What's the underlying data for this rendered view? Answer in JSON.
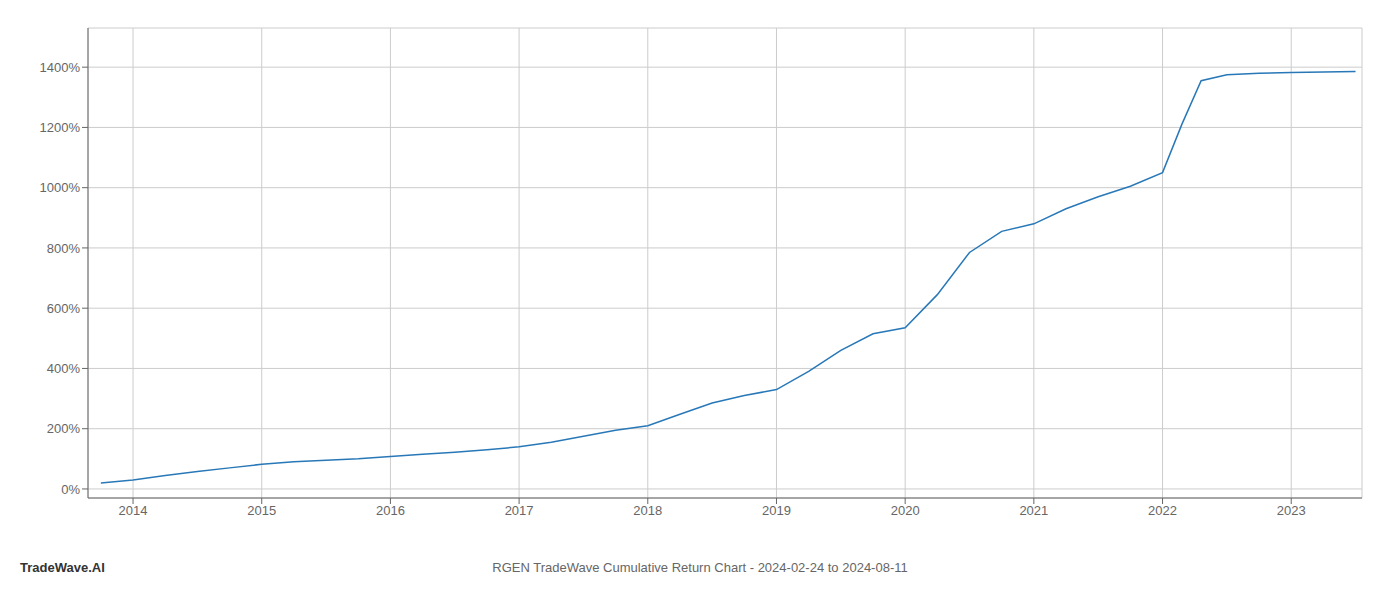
{
  "chart_data": {
    "type": "line",
    "title": "RGEN TradeWave Cumulative Return Chart - 2024-02-24 to 2024-08-11",
    "annotations": [
      "TradeWave.AI"
    ],
    "color": "#2878b8",
    "grid": true,
    "xlim": [
      2013.65,
      2023.55
    ],
    "xticks": [
      2014,
      2015,
      2016,
      2017,
      2018,
      2019,
      2020,
      2021,
      2022,
      2023
    ],
    "ylim": [
      -30,
      1530
    ],
    "yticks": [
      {
        "value": 0,
        "label": "0%"
      },
      {
        "value": 200,
        "label": "200%"
      },
      {
        "value": 400,
        "label": "400%"
      },
      {
        "value": 600,
        "label": "600%"
      },
      {
        "value": 800,
        "label": "800%"
      },
      {
        "value": 1000,
        "label": "1000%"
      },
      {
        "value": 1200,
        "label": "1200%"
      },
      {
        "value": 1400,
        "label": "1400%"
      }
    ],
    "x": [
      2013.75,
      2014.0,
      2014.25,
      2014.5,
      2014.75,
      2015.0,
      2015.25,
      2015.5,
      2015.75,
      2016.0,
      2016.25,
      2016.5,
      2016.75,
      2017.0,
      2017.25,
      2017.5,
      2017.75,
      2018.0,
      2018.25,
      2018.5,
      2018.75,
      2019.0,
      2019.25,
      2019.5,
      2019.75,
      2020.0,
      2020.25,
      2020.5,
      2020.75,
      2021.0,
      2021.25,
      2021.5,
      2021.75,
      2022.0,
      2022.15,
      2022.3,
      2022.5,
      2022.75,
      2023.0,
      2023.25,
      2023.5
    ],
    "values": [
      20,
      30,
      45,
      58,
      70,
      82,
      90,
      95,
      100,
      108,
      115,
      122,
      130,
      140,
      155,
      175,
      195,
      210,
      248,
      285,
      310,
      330,
      390,
      460,
      515,
      535,
      645,
      785,
      855,
      880,
      930,
      970,
      1005,
      1050,
      1210,
      1355,
      1375,
      1380,
      1382,
      1384,
      1386
    ]
  }
}
